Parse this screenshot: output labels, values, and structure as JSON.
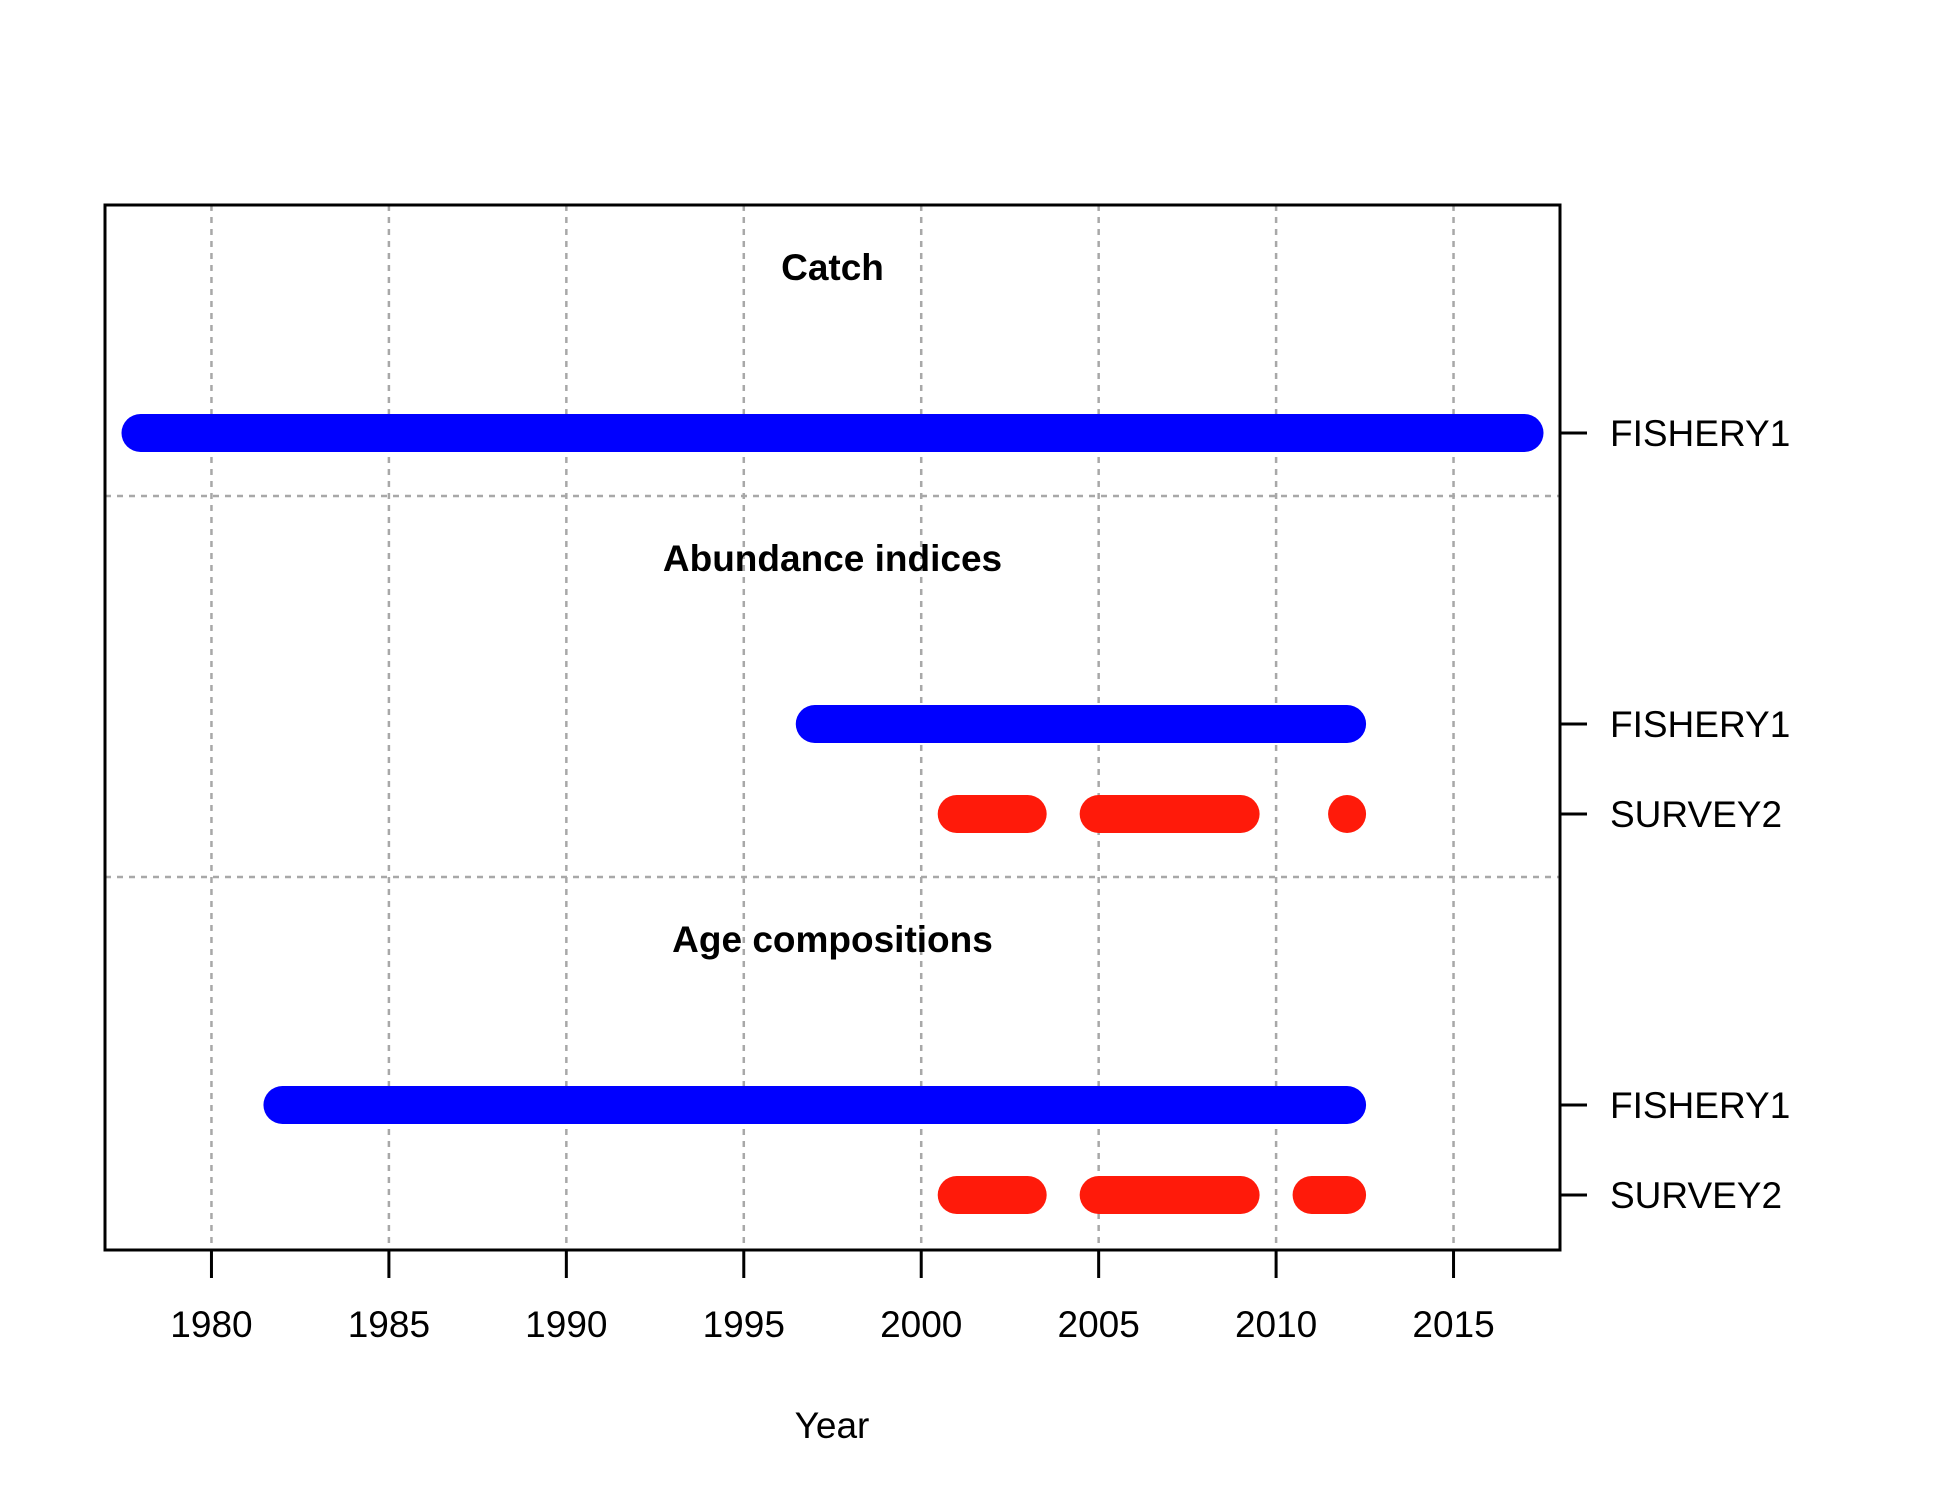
{
  "chart_data": {
    "type": "timeline",
    "xlabel": "Year",
    "xlim": [
      1977,
      2018
    ],
    "xticks": [
      1980,
      1985,
      1990,
      1995,
      2000,
      2005,
      2010,
      2015
    ],
    "grid": true,
    "colors": {
      "FISHERY1": "#0000ff",
      "SURVEY2": "#ff1a0a"
    },
    "sections": [
      {
        "title": "Catch",
        "rows": [
          {
            "label": "FISHERY1",
            "color": "#0000ff",
            "years": "1978-2017",
            "segments": [
              [
                1978,
                2017
              ]
            ]
          }
        ]
      },
      {
        "title": "Abundance indices",
        "rows": [
          {
            "label": "FISHERY1",
            "color": "#0000ff",
            "years": "1997-2012",
            "segments": [
              [
                1997,
                2012
              ]
            ]
          },
          {
            "label": "SURVEY2",
            "color": "#ff1a0a",
            "years": "2001-2003, 2005-2009, 2012",
            "segments": [
              [
                2001,
                2003
              ],
              [
                2005,
                2009
              ],
              [
                2012,
                2012
              ]
            ]
          }
        ]
      },
      {
        "title": "Age compositions",
        "rows": [
          {
            "label": "FISHERY1",
            "color": "#0000ff",
            "years": "1982-2012",
            "segments": [
              [
                1982,
                2012
              ]
            ]
          },
          {
            "label": "SURVEY2",
            "color": "#ff1a0a",
            "years": "2001-2003, 2005-2009, 2011-2012",
            "segments": [
              [
                2001,
                2003
              ],
              [
                2005,
                2009
              ],
              [
                2011,
                2012
              ]
            ]
          }
        ]
      }
    ]
  }
}
